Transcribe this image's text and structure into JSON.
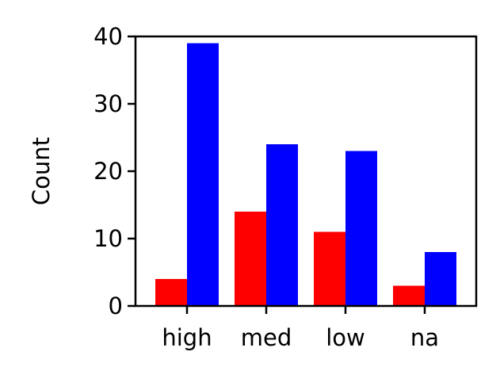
{
  "chart_data": {
    "type": "bar",
    "categories": [
      "high",
      "med",
      "low",
      "na"
    ],
    "series": [
      {
        "values": [
          4,
          14,
          11,
          3
        ],
        "color": "#ff0000"
      },
      {
        "values": [
          39,
          24,
          23,
          8
        ],
        "color": "#0000ff"
      }
    ],
    "title": "",
    "xlabel": "",
    "ylabel": "Count",
    "ylim": [
      0,
      40
    ],
    "yticks": [
      0,
      10,
      20,
      30,
      40
    ],
    "grid": false,
    "legend": "none"
  }
}
